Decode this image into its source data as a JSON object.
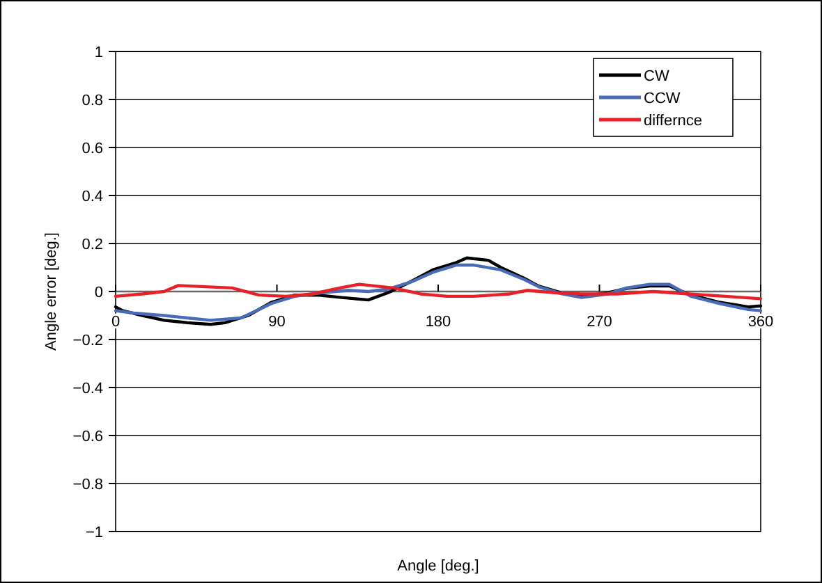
{
  "chart_data": {
    "type": "line",
    "xlabel": "Angle [deg.]",
    "ylabel": "Angle error [deg.]",
    "xlim": [
      0,
      360
    ],
    "xticks": [
      0,
      90,
      180,
      270,
      360
    ],
    "ylim": [
      -1,
      1
    ],
    "yticks": [
      1,
      0.8,
      0.6,
      0.4,
      0.2,
      0,
      {
        "value": -0.2,
        "label": "−0.2"
      },
      {
        "value": -0.4,
        "label": "−0.4"
      },
      {
        "value": -0.6,
        "label": "−0.6"
      },
      {
        "value": -0.8,
        "label": "−0.8"
      },
      {
        "value": -1,
        "label": "−1"
      }
    ],
    "grid": "y",
    "legend": "top right",
    "line_style": "solid",
    "marker": "none",
    "series": [
      {
        "name": "CW",
        "color": "#000000",
        "x": [
          0,
          4,
          15,
          27,
          40,
          53,
          61,
          74,
          87,
          100,
          113,
          126,
          141,
          152,
          165,
          177,
          190,
          196,
          208,
          215,
          228,
          236,
          249,
          260,
          275,
          285,
          298,
          309,
          321,
          337,
          353,
          360
        ],
        "values": [
          -0.064,
          -0.08,
          -0.1,
          -0.12,
          -0.13,
          -0.137,
          -0.13,
          -0.1,
          -0.045,
          -0.015,
          -0.015,
          -0.025,
          -0.035,
          -0.005,
          0.042,
          0.09,
          0.12,
          0.14,
          0.13,
          0.1,
          0.055,
          0.023,
          -0.006,
          -0.021,
          -0.005,
          0.013,
          0.023,
          0.023,
          -0.015,
          -0.045,
          -0.064,
          -0.06
        ]
      },
      {
        "name": "CCW",
        "color": "#4a6cb8",
        "x": [
          0,
          10,
          27,
          40,
          53,
          70,
          87,
          100,
          115,
          130,
          141,
          152,
          165,
          177,
          190,
          200,
          215,
          228,
          236,
          249,
          260,
          275,
          285,
          298,
          309,
          321,
          337,
          353,
          360
        ],
        "values": [
          -0.08,
          -0.09,
          -0.1,
          -0.11,
          -0.12,
          -0.11,
          -0.05,
          -0.02,
          -0.005,
          0.005,
          0,
          0.01,
          0.04,
          0.08,
          0.11,
          0.11,
          0.09,
          0.05,
          0.02,
          -0.01,
          -0.025,
          -0.01,
          0.015,
          0.03,
          0.03,
          -0.02,
          -0.05,
          -0.075,
          -0.08
        ]
      },
      {
        "name": "differnce",
        "color": "#e8202a",
        "x": [
          0,
          15,
          27,
          35,
          50,
          65,
          80,
          95,
          110,
          125,
          136,
          155,
          170,
          185,
          200,
          220,
          230,
          245,
          260,
          280,
          300,
          320,
          340,
          360
        ],
        "values": [
          -0.02,
          -0.01,
          0,
          0.025,
          0.02,
          0.015,
          -0.015,
          -0.02,
          -0.01,
          0.015,
          0.03,
          0.015,
          -0.01,
          -0.02,
          -0.02,
          -0.01,
          0.005,
          -0.005,
          -0.01,
          -0.01,
          0,
          -0.01,
          -0.02,
          -0.03
        ]
      }
    ]
  }
}
